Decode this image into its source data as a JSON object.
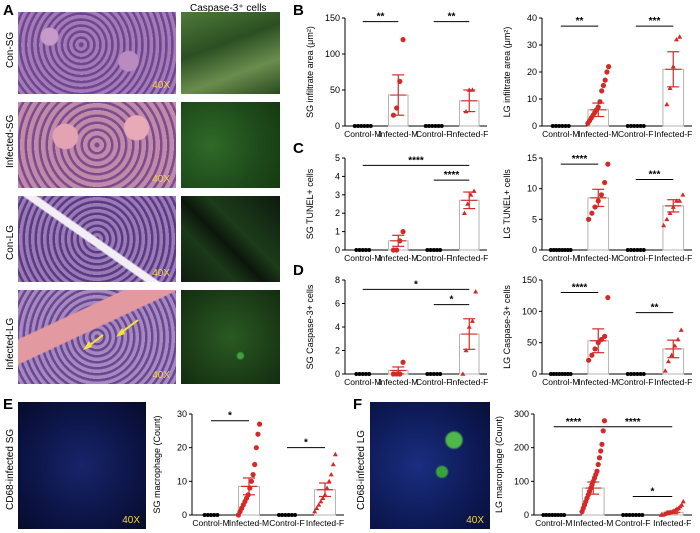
{
  "figure": {
    "panel_letters": [
      "A",
      "B",
      "C",
      "D",
      "E",
      "F"
    ],
    "caspase_header": "Caspase-3⁺ cells",
    "row_labels": [
      "Con-SG",
      "Infected-SG",
      "Con-LG",
      "Infected-LG"
    ],
    "magnification": "40X",
    "e_image_label": "CD68-infected SG",
    "f_image_label": "CD68-infected LG"
  },
  "colors": {
    "control": "#000000",
    "infected": "#d42a27",
    "he_tissue": "#7d4f9a",
    "caspase_green": "#2e7d2e",
    "cd68_blue": "#1c2a78",
    "mag_text": "#f5d53a"
  },
  "chart_data": [
    {
      "id": "B-left",
      "type": "bar",
      "ylabel": "SG infiltrate area (μm²)",
      "ylim": [
        0,
        150
      ],
      "yticks": [
        0,
        50,
        100,
        150
      ],
      "categories": [
        "Control-M",
        "Infected-M",
        "Control-F",
        "Infected-F"
      ],
      "means": [
        0,
        43,
        0,
        35
      ],
      "errors": [
        0,
        28,
        0,
        15
      ],
      "points": [
        [
          0,
          0,
          0,
          0,
          0,
          0
        ],
        [
          15,
          25,
          62,
          120
        ],
        [
          0,
          0,
          0,
          0,
          0,
          0
        ],
        [
          20,
          50,
          50
        ]
      ],
      "significance": [
        {
          "from": 0,
          "to": 1,
          "label": "**",
          "y": 145
        },
        {
          "from": 2,
          "to": 3,
          "label": "**",
          "y": 145
        }
      ]
    },
    {
      "id": "B-right",
      "type": "bar",
      "ylabel": "LG infiltrate area (μm²)",
      "ylim": [
        0,
        40
      ],
      "yticks": [
        0,
        10,
        20,
        30,
        40
      ],
      "categories": [
        "Control-M",
        "Infected-M",
        "Control-F",
        "Infected-F"
      ],
      "means": [
        0,
        6,
        0,
        21
      ],
      "errors": [
        0,
        2.5,
        0,
        6.5
      ],
      "points": [
        [
          0,
          0,
          0,
          0,
          0,
          0
        ],
        [
          1,
          2,
          3,
          4,
          5,
          6,
          7,
          9,
          13,
          15,
          17,
          20,
          22
        ],
        [
          0,
          0,
          0,
          0,
          0,
          0
        ],
        [
          8,
          14,
          22,
          32,
          33
        ]
      ],
      "significance": [
        {
          "from": 0,
          "to": 1,
          "label": "**",
          "y": 37
        },
        {
          "from": 2,
          "to": 3,
          "label": "***",
          "y": 37
        }
      ]
    },
    {
      "id": "C-left",
      "type": "bar",
      "ylabel": "SG TUNEL+ cells",
      "ylim": [
        0,
        5
      ],
      "yticks": [
        0,
        1,
        2,
        3,
        4,
        5
      ],
      "categories": [
        "Control-M",
        "Infected-M",
        "Control-F",
        "Infected-F"
      ],
      "means": [
        0,
        0.5,
        0,
        2.7
      ],
      "errors": [
        0,
        0.3,
        0,
        0.45
      ],
      "points": [
        [
          0,
          0,
          0,
          0,
          0
        ],
        [
          0,
          0,
          0.5,
          1
        ],
        [
          0,
          0,
          0,
          0,
          0
        ],
        [
          2,
          2.5,
          3,
          3.2
        ]
      ],
      "significance": [
        {
          "from": 0,
          "to": 3,
          "label": "****",
          "y": 4.6
        },
        {
          "from": 2,
          "to": 3,
          "label": "****",
          "y": 3.8
        }
      ]
    },
    {
      "id": "C-right",
      "type": "bar",
      "ylabel": "LG TUNEL+ cells",
      "ylim": [
        0,
        15
      ],
      "yticks": [
        0,
        5,
        10,
        15
      ],
      "categories": [
        "Control-M",
        "Infected-M",
        "Control-F",
        "Infected-F"
      ],
      "means": [
        0,
        8.5,
        0,
        7.2
      ],
      "errors": [
        0,
        1.4,
        0,
        1
      ],
      "points": [
        [
          0,
          0,
          0,
          0,
          0,
          0,
          0,
          0
        ],
        [
          5,
          6,
          7,
          8,
          9,
          11,
          14
        ],
        [
          0,
          0,
          0,
          0,
          0,
          0
        ],
        [
          4,
          5,
          6,
          7,
          8,
          8,
          9
        ]
      ],
      "significance": [
        {
          "from": 0,
          "to": 1,
          "label": "****",
          "y": 14
        },
        {
          "from": 2,
          "to": 3,
          "label": "***",
          "y": 11.5
        }
      ]
    },
    {
      "id": "D-left",
      "type": "bar",
      "ylabel": "SG Caspase-3+ cells",
      "ylim": [
        0,
        8
      ],
      "yticks": [
        0,
        2,
        4,
        6,
        8
      ],
      "categories": [
        "Control-M",
        "Infected-M",
        "Control-F",
        "Infected-F"
      ],
      "means": [
        0,
        0.3,
        0,
        3.4
      ],
      "errors": [
        0,
        0.3,
        0,
        1.3
      ],
      "points": [
        [
          0,
          0,
          0,
          0,
          0
        ],
        [
          0,
          0,
          0,
          1
        ],
        [
          0,
          0,
          0,
          0,
          0
        ],
        [
          0,
          2,
          4,
          4.5,
          7
        ]
      ],
      "significance": [
        {
          "from": 0,
          "to": 3,
          "label": "*",
          "y": 7.2
        },
        {
          "from": 2,
          "to": 3,
          "label": "*",
          "y": 5.9
        }
      ]
    },
    {
      "id": "D-right",
      "type": "bar",
      "ylabel": "LG Caspase-3+ cells",
      "ylim": [
        0,
        150
      ],
      "yticks": [
        0,
        50,
        100,
        150
      ],
      "categories": [
        "Control-M",
        "Infected-M",
        "Control-F",
        "Infected-F"
      ],
      "means": [
        0,
        53,
        0,
        40
      ],
      "errors": [
        0,
        19,
        0,
        14
      ],
      "points": [
        [
          0,
          0,
          0,
          0,
          0,
          0,
          0,
          0
        ],
        [
          22,
          30,
          40,
          50,
          55,
          60,
          122
        ],
        [
          0,
          0,
          0,
          0,
          0,
          0
        ],
        [
          5,
          20,
          30,
          45,
          55,
          70
        ]
      ],
      "significance": [
        {
          "from": 0,
          "to": 1,
          "label": "****",
          "y": 130
        },
        {
          "from": 2,
          "to": 3,
          "label": "**",
          "y": 98
        }
      ]
    },
    {
      "id": "E",
      "type": "bar",
      "ylabel": "SG macrophage (Count)",
      "ylim": [
        0,
        30
      ],
      "yticks": [
        0,
        10,
        20,
        30
      ],
      "categories": [
        "Control-M",
        "Infected-M",
        "Control-F",
        "Infected-F"
      ],
      "means": [
        0,
        8.5,
        0,
        7.5
      ],
      "errors": [
        0,
        2.5,
        0,
        2
      ],
      "points": [
        [
          0,
          0,
          0,
          0,
          0
        ],
        [
          0,
          1,
          2,
          3,
          4,
          5,
          6,
          8,
          10,
          12,
          15,
          20,
          24,
          27
        ],
        [
          0,
          0,
          0,
          0,
          0,
          0
        ],
        [
          1,
          2,
          3,
          4,
          5,
          6,
          8,
          10,
          12,
          15,
          18
        ]
      ],
      "significance": [
        {
          "from": 0,
          "to": 1,
          "label": "*",
          "y": 28
        },
        {
          "from": 2,
          "to": 3,
          "label": "*",
          "y": 20
        }
      ]
    },
    {
      "id": "F",
      "type": "bar",
      "ylabel": "LG macrophage (Count)",
      "ylim": [
        0,
        300
      ],
      "yticks": [
        0,
        100,
        200,
        300
      ],
      "categories": [
        "Control-M",
        "Infected-M",
        "Control-F",
        "Infected-F"
      ],
      "means": [
        0,
        80,
        0,
        8
      ],
      "errors": [
        0,
        18,
        0,
        4
      ],
      "points": [
        [
          0,
          0,
          0,
          0,
          0,
          0,
          0,
          0
        ],
        [
          10,
          20,
          30,
          40,
          50,
          60,
          70,
          80,
          90,
          100,
          110,
          120,
          130,
          150,
          170,
          190,
          210,
          250,
          280
        ],
        [
          0,
          0,
          0,
          0,
          0,
          0,
          0
        ],
        [
          0,
          0,
          2,
          4,
          5,
          6,
          8,
          10,
          12,
          15,
          18,
          20,
          25,
          30,
          40
        ]
      ],
      "significance": [
        {
          "from": 0,
          "to": 1,
          "label": "****",
          "y": 262
        },
        {
          "from": 1,
          "to": 3,
          "label": "****",
          "y": 262
        },
        {
          "from": 2,
          "to": 3,
          "label": "*",
          "y": 55
        }
      ]
    }
  ]
}
